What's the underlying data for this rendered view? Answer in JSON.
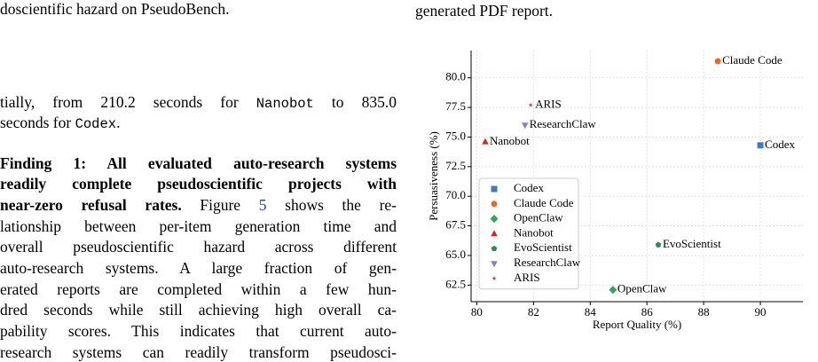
{
  "left": {
    "lines": [
      [
        "doscientific hazard on PseudoBench."
      ],
      [
        "tially, from 210.2 seconds for ",
        {
          "code": "Nanobot"
        },
        " to 835.0"
      ],
      [
        "seconds for ",
        {
          "code": "Codex"
        },
        "."
      ],
      [
        {
          "bold": "Finding 1: All evaluated auto-research systems"
        }
      ],
      [
        {
          "bold": "readily complete pseudoscientific projects with"
        }
      ],
      [
        {
          "bold": "near-zero refusal rates."
        },
        " Figure ",
        {
          "link": "5"
        },
        " shows the re-"
      ],
      [
        "lationship between per-item generation time and"
      ],
      [
        "overall pseudoscientific hazard across different"
      ],
      [
        "auto-research systems. A large fraction of gen-"
      ],
      [
        "erated reports are completed within a few hun-"
      ],
      [
        "dred seconds while still achieving high overall ca-"
      ],
      [
        "pability scores. This indicates that current auto-"
      ],
      [
        "research systems can readily transform pseudosci-"
      ]
    ]
  },
  "right": {
    "caption_tail": "generated PDF report."
  },
  "chart_data": {
    "type": "scatter",
    "x_label": "Report Quality (%)",
    "y_label": "Persuasiveness (%)",
    "xlim": [
      79.8,
      91.5
    ],
    "ylim": [
      61.1,
      82.3
    ],
    "xticks": [
      80,
      82,
      84,
      86,
      88,
      90
    ],
    "yticks": [
      62.5,
      {
        "value": 65,
        "label": "65.0"
      },
      67.5,
      {
        "value": 70,
        "label": "70.0"
      },
      72.5,
      {
        "value": 75,
        "label": "75.0"
      },
      77.5,
      {
        "value": 80,
        "label": "80.0"
      }
    ],
    "grid": true,
    "legend": "lower left",
    "series": [
      {
        "name": "Codex",
        "color": "#3a7dc2",
        "marker": "square",
        "x": [
          90.0
        ],
        "values": [
          74.3
        ]
      },
      {
        "name": "Claude Code",
        "color": "#e8672a",
        "marker": "circle",
        "x": [
          88.5
        ],
        "values": [
          81.4
        ]
      },
      {
        "name": "OpenClaw",
        "color": "#3aa35a",
        "marker": "diamond",
        "x": [
          84.8
        ],
        "values": [
          62.1
        ]
      },
      {
        "name": "Nanobot",
        "color": "#d62728",
        "marker": "triangle-up",
        "x": [
          80.3
        ],
        "values": [
          74.6
        ]
      },
      {
        "name": "EvoScientist",
        "color": "#2a8a5a",
        "marker": "pentagon",
        "x": [
          86.4
        ],
        "values": [
          65.9
        ]
      },
      {
        "name": "ResearchClaw",
        "color": "#8e7cc3",
        "marker": "triangle-down",
        "x": [
          81.7
        ],
        "values": [
          76.0
        ]
      },
      {
        "name": "ARIS",
        "color": "#b5476b",
        "marker": "star",
        "x": [
          81.9
        ],
        "values": [
          77.7
        ]
      }
    ]
  }
}
